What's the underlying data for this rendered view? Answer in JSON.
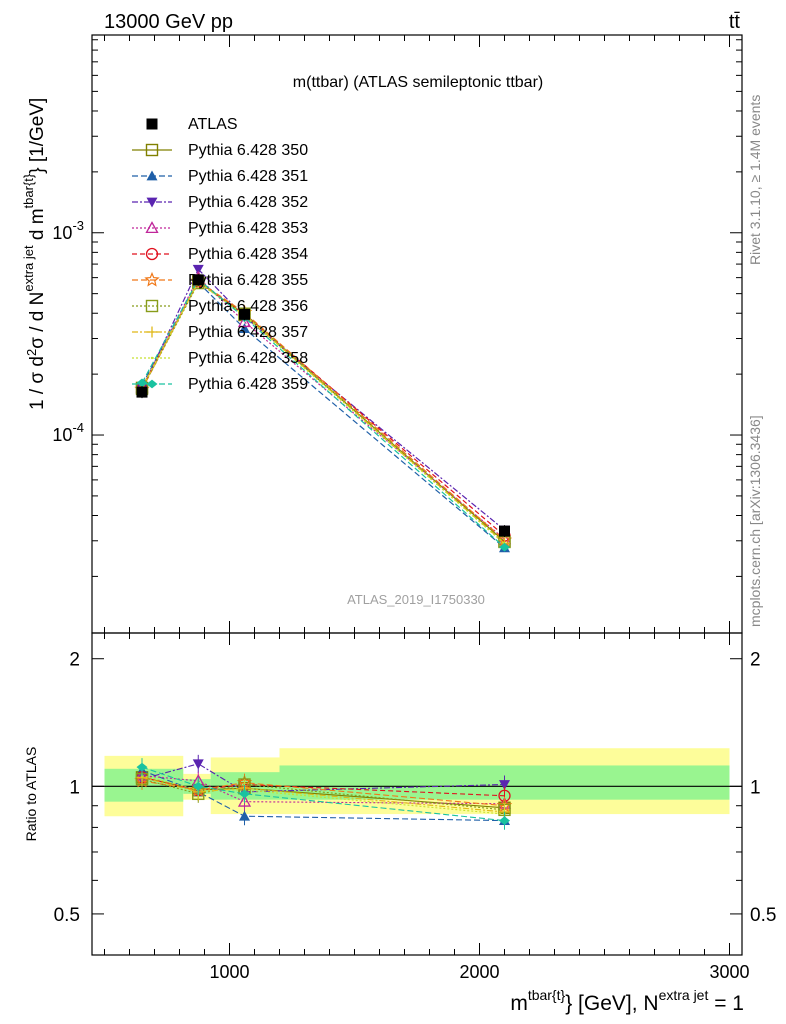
{
  "header": {
    "left": "13000 GeV pp",
    "right": "tt̄"
  },
  "side_labels": {
    "rivet": "Rivet 3.1.10, ≥ 1.4M events",
    "mcplots": "mcplots.cern.ch [arXiv:1306.3436]"
  },
  "watermark": "ATLAS_2019_I1750330",
  "chart_data": [
    {
      "type": "line",
      "title": "m(ttbar) (ATLAS semileptonic ttbar)",
      "ylabel": "1 / σ d²σ / d N^{extra jet} d m^{tbar{t}} [1/GeV]",
      "xlabel": "m^{tbar{t}} [GeV], N^{extra jet} = 1",
      "x_scale": "linear",
      "y_scale": "log",
      "xlim": [
        450,
        3050
      ],
      "ylim": [
        1.05e-05,
        0.0095
      ],
      "y_ticks": [
        {
          "value": 0.001,
          "label": "10",
          "exp": "-3"
        },
        {
          "value": 0.0001,
          "label": "10",
          "exp": "-4"
        }
      ],
      "x": [
        650,
        875,
        1060,
        2100
      ],
      "data": {
        "name": "ATLAS",
        "values": [
          0.000163,
          0.000585,
          0.000395,
          3.35e-05
        ],
        "color": "#000000"
      },
      "series": [
        {
          "name": "Pythia 6.428 350",
          "color": "#808000",
          "marker": "square-open",
          "dash": "solid",
          "values": [
            0.000171,
            0.000575,
            0.000392,
            2.98e-05
          ]
        },
        {
          "name": "Pythia 6.428 351",
          "color": "#1f5fa8",
          "marker": "triangle-up-filled",
          "dash": "6,3",
          "values": [
            0.000177,
            0.000568,
            0.000336,
            2.77e-05
          ]
        },
        {
          "name": "Pythia 6.428 352",
          "color": "#5a24b0",
          "marker": "triangle-down-filled",
          "dash": "6,2,2,2",
          "values": [
            0.000169,
            0.00066,
            0.000384,
            3.39e-05
          ]
        },
        {
          "name": "Pythia 6.428 353",
          "color": "#c0269a",
          "marker": "triangle-up-open",
          "dash": "2,2",
          "values": [
            0.000172,
            0.000601,
            0.000362,
            3.06e-05
          ]
        },
        {
          "name": "Pythia 6.428 354",
          "color": "#e0101e",
          "marker": "circle-open",
          "dash": "5,3",
          "values": [
            0.000171,
            0.000575,
            0.000397,
            3.18e-05
          ]
        },
        {
          "name": "Pythia 6.428 355",
          "color": "#f07818",
          "marker": "star-open",
          "dash": "6,3",
          "values": [
            0.000168,
            0.000576,
            0.000403,
            3.02e-05
          ]
        },
        {
          "name": "Pythia 6.428 356",
          "color": "#889c1a",
          "marker": "square-open",
          "dash": "2,2",
          "values": [
            0.000169,
            0.000564,
            0.000398,
            2.96e-05
          ]
        },
        {
          "name": "Pythia 6.428 357",
          "color": "#e0b818",
          "marker": "cross",
          "dash": "6,2,2,2",
          "values": [
            0.000171,
            0.00057,
            0.000392,
            2.92e-05
          ]
        },
        {
          "name": "Pythia 6.428 358",
          "color": "#c8e030",
          "marker": "none",
          "dash": "2,2",
          "values": [
            0.000172,
            0.000572,
            0.000389,
            2.9e-05
          ]
        },
        {
          "name": "Pythia 6.428 359",
          "color": "#19c2a0",
          "marker": "pointer",
          "dash": "6,3",
          "values": [
            0.000181,
            0.000588,
            0.000381,
            2.79e-05
          ]
        }
      ]
    },
    {
      "type": "line",
      "ylabel": "Ratio to ATLAS",
      "xlim": [
        450,
        3050
      ],
      "ylim": [
        0.4,
        2.3
      ],
      "y_ticks": [
        {
          "value": 2,
          "label": "2"
        },
        {
          "value": 1,
          "label": "1"
        },
        {
          "value": 0.5,
          "label": "0.5"
        }
      ],
      "x_ticks": [
        {
          "value": 1000,
          "label": "1000"
        },
        {
          "value": 2000,
          "label": "2000"
        },
        {
          "value": 3000,
          "label": "3000"
        }
      ],
      "bins": [
        {
          "x0": 500,
          "x1": 815,
          "stat_lo": 0.92,
          "stat_hi": 1.1,
          "tot_lo": 0.85,
          "tot_hi": 1.18
        },
        {
          "x0": 815,
          "x1": 925,
          "stat_lo": 0.96,
          "stat_hi": 1.04,
          "tot_lo": 0.93,
          "tot_hi": 1.07
        },
        {
          "x0": 925,
          "x1": 1200,
          "stat_lo": 0.93,
          "stat_hi": 1.08,
          "tot_lo": 0.86,
          "tot_hi": 1.17
        },
        {
          "x0": 1200,
          "x1": 3000,
          "stat_lo": 0.93,
          "stat_hi": 1.12,
          "tot_lo": 0.86,
          "tot_hi": 1.23
        }
      ],
      "ratios": [
        [
          1.05,
          0.98,
          0.99,
          0.89
        ],
        [
          1.09,
          0.97,
          0.85,
          0.83
        ],
        [
          1.04,
          1.13,
          0.97,
          1.01
        ],
        [
          1.06,
          1.03,
          0.92,
          0.91
        ],
        [
          1.05,
          0.98,
          1.01,
          0.95
        ],
        [
          1.03,
          0.98,
          1.02,
          0.9
        ],
        [
          1.04,
          0.96,
          1.01,
          0.88
        ],
        [
          1.05,
          0.97,
          0.99,
          0.87
        ],
        [
          1.06,
          0.98,
          0.98,
          0.86
        ],
        [
          1.11,
          1.0,
          0.96,
          0.83
        ]
      ]
    }
  ],
  "colors": {
    "stat_band": "#99f590",
    "total_band": "#fdfd9a"
  }
}
